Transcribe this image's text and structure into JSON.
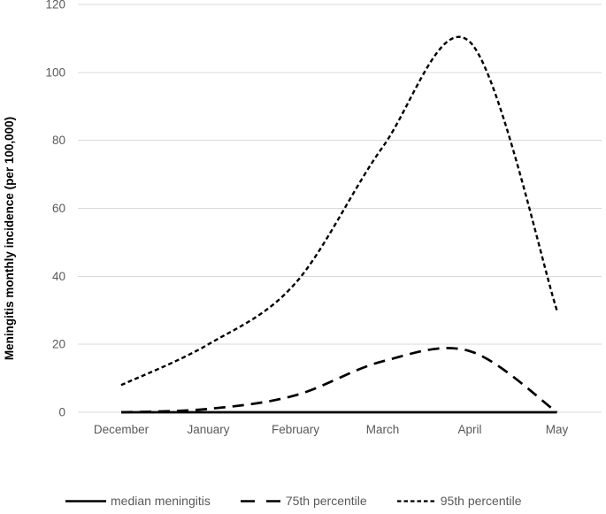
{
  "chart_data": {
    "type": "line",
    "title": "",
    "xlabel": "",
    "ylabel": "Meningitis monthly incidence (per 100,000)",
    "categories": [
      "December",
      "January",
      "February",
      "March",
      "April",
      "May"
    ],
    "series": [
      {
        "name": "median meningitis",
        "dash": "solid",
        "color": "#000000",
        "values": [
          0,
          0,
          0,
          0,
          0,
          0
        ]
      },
      {
        "name": "75th percentile",
        "dash": "long-dash",
        "color": "#000000",
        "values": [
          0,
          1,
          5,
          15,
          18,
          0
        ]
      },
      {
        "name": "95th percentile",
        "dash": "short-dash",
        "color": "#000000",
        "values": [
          8,
          20,
          38,
          78,
          109,
          30
        ]
      }
    ],
    "ylim": [
      0,
      120
    ],
    "yticks": [
      0,
      20,
      40,
      60,
      80,
      100,
      120
    ],
    "grid": true,
    "smoothed_lines": true,
    "legend_position": "bottom",
    "colors": {
      "line": "#000000",
      "gridline": "#d9d9d9",
      "tick_label": "#595959",
      "axis_title": "#000000",
      "background": "#ffffff"
    }
  }
}
